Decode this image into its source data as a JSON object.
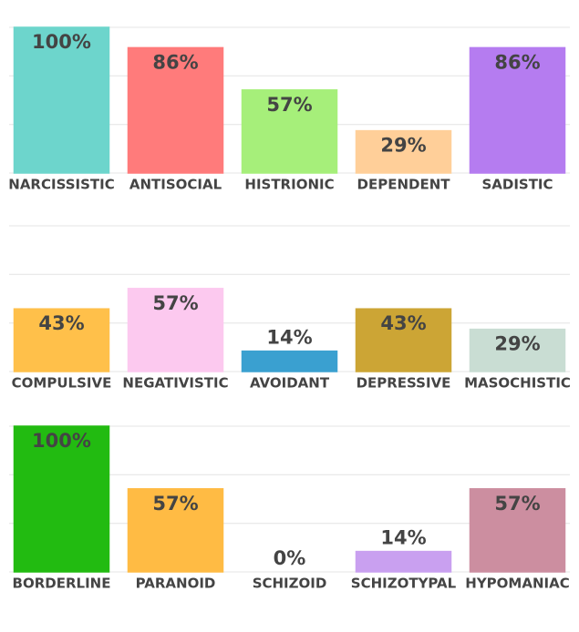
{
  "chart_data": [
    {
      "type": "bar",
      "categories": [
        "NARCISSISTIC",
        "ANTISOCIAL",
        "HISTRIONIC",
        "DEPENDENT",
        "SADISTIC"
      ],
      "values": [
        100,
        86,
        57,
        29,
        86
      ],
      "value_labels": [
        "100%",
        "86%",
        "57%",
        "29%",
        "86%"
      ],
      "colors": [
        "#6dd5cc",
        "#ff7b7b",
        "#a6ef7a",
        "#ffcf99",
        "#b57cf0"
      ],
      "ylim": [
        0,
        100
      ],
      "yticks": [
        0,
        33.3,
        66.7,
        100
      ],
      "grid": true
    },
    {
      "type": "bar",
      "categories": [
        "COMPULSIVE",
        "NEGATIVISTIC",
        "AVOIDANT",
        "DEPRESSIVE",
        "MASOCHISTIC"
      ],
      "values": [
        43,
        57,
        14,
        43,
        29
      ],
      "value_labels": [
        "43%",
        "57%",
        "14%",
        "43%",
        "29%"
      ],
      "colors": [
        "#ffc04a",
        "#fcc9ef",
        "#3aa0d0",
        "#cca535",
        "#c9ddd3"
      ],
      "ylim": [
        0,
        100
      ],
      "yticks": [
        0,
        33.3,
        66.7,
        100
      ],
      "grid": true
    },
    {
      "type": "bar",
      "categories": [
        "BORDERLINE",
        "PARANOID",
        "SCHIZOID",
        "SCHIZOTYPAL",
        "HYPOMANIAC"
      ],
      "values": [
        100,
        57,
        0,
        14,
        57
      ],
      "value_labels": [
        "100%",
        "57%",
        "0%",
        "14%",
        "57%"
      ],
      "colors": [
        "#22bb11",
        "#ffbb44",
        "#e04040",
        "#c9a0f0",
        "#cc8ea0"
      ],
      "ylim": [
        0,
        100
      ],
      "yticks": [
        0,
        33.3,
        66.7,
        100
      ],
      "grid": true
    }
  ]
}
